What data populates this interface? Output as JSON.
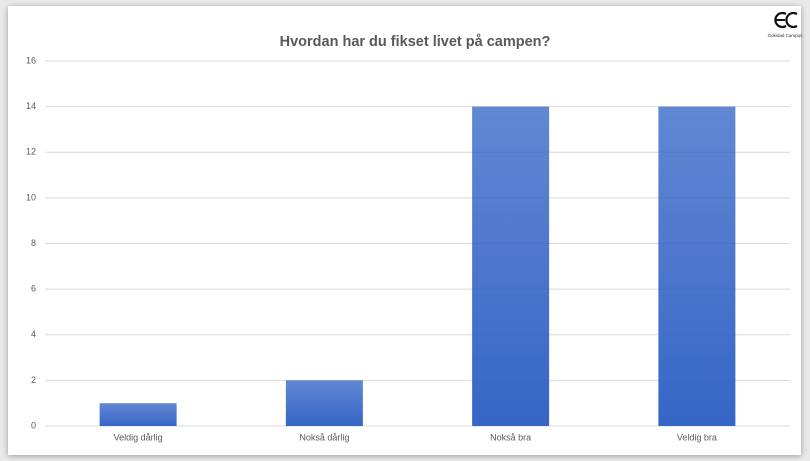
{
  "chart_data": {
    "type": "bar",
    "title": "Hvordan har du fikset livet på campen?",
    "logo_text": "Gokstad Campus",
    "categories": [
      "Veldig dårlig",
      "Nokså dårlig",
      "Nokså bra",
      "Veldig bra"
    ],
    "values": [
      1,
      2,
      14,
      14
    ],
    "color": "#3566c6",
    "ylim": [
      0,
      16
    ],
    "yticks": [
      0,
      2,
      4,
      6,
      8,
      10,
      12,
      14,
      16
    ],
    "grid": true
  }
}
